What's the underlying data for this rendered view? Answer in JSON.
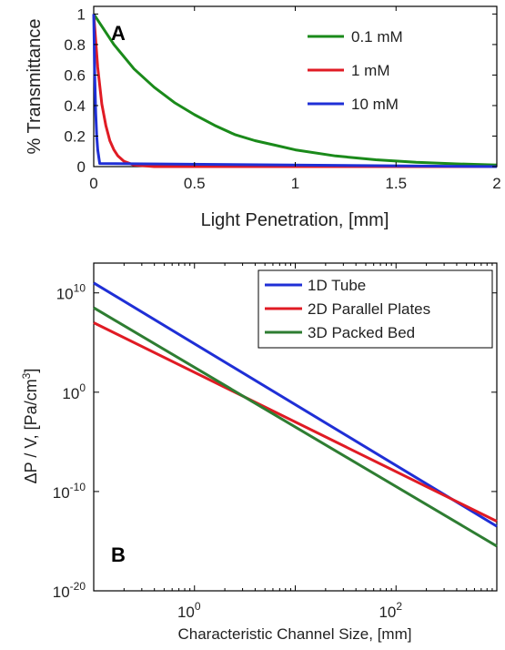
{
  "chart_data": [
    {
      "type": "line",
      "panel_label": "A",
      "xlabel": "Light Penetration, [mm]",
      "ylabel": "% Transmittance",
      "xlim": [
        0,
        2
      ],
      "ylim": [
        0,
        1.05
      ],
      "xticks": [
        0,
        0.5,
        1,
        1.5,
        2
      ],
      "xtick_labels": [
        "0",
        "0.5",
        "1",
        "1.5",
        "2"
      ],
      "yticks": [
        0,
        0.2,
        0.4,
        0.6,
        0.8,
        1
      ],
      "ytick_labels": [
        "0",
        "0.2",
        "0.4",
        "0.6",
        "0.8",
        "1"
      ],
      "grid": false,
      "legend_position": "top-right",
      "series": [
        {
          "name": "0.1 mM",
          "color": "#1a8a1a",
          "x": [
            0,
            0.1,
            0.2,
            0.3,
            0.4,
            0.5,
            0.6,
            0.7,
            0.8,
            0.9,
            1.0,
            1.2,
            1.4,
            1.6,
            1.8,
            2.0
          ],
          "y": [
            1,
            0.8,
            0.64,
            0.52,
            0.42,
            0.34,
            0.27,
            0.21,
            0.17,
            0.14,
            0.11,
            0.07,
            0.045,
            0.028,
            0.018,
            0.011
          ]
        },
        {
          "name": "1 mM",
          "color": "#e01b24",
          "x": [
            0,
            0.02,
            0.04,
            0.06,
            0.08,
            0.1,
            0.12,
            0.15,
            0.2,
            0.3,
            2.0
          ],
          "y": [
            1,
            0.65,
            0.41,
            0.27,
            0.17,
            0.11,
            0.07,
            0.035,
            0.01,
            0,
            0
          ]
        },
        {
          "name": "10 mM",
          "color": "#1f2fd6",
          "x": [
            0,
            0.005,
            0.01,
            0.015,
            0.02,
            0.03,
            2.0
          ],
          "y": [
            1,
            0.6,
            0.35,
            0.2,
            0.11,
            0.02,
            0
          ]
        }
      ]
    },
    {
      "type": "line",
      "panel_label": "B",
      "xlabel": "Characteristic Channel Size, [mm]",
      "ylabel": "ΔP / V, [Pa/cm",
      "ylabel_superscript": "3",
      "ylabel_suffix": "]",
      "xscale": "log",
      "yscale": "log",
      "xlim": [
        0.1,
        1000
      ],
      "ylim": [
        1e-20,
        10000000000000.0
      ],
      "xticks": [
        1,
        100
      ],
      "xtick_labels": [
        {
          "base": "10",
          "exp": "0"
        },
        {
          "base": "10",
          "exp": "2"
        }
      ],
      "yticks": [
        1e-20,
        1e-10,
        1,
        10000000000.0
      ],
      "ytick_labels": [
        {
          "base": "10",
          "exp": "-20"
        },
        {
          "base": "10",
          "exp": "-10"
        },
        {
          "base": "10",
          "exp": "0"
        },
        {
          "base": "10",
          "exp": "10"
        }
      ],
      "grid": false,
      "legend_position": "top-right",
      "series": [
        {
          "name": "1D Tube",
          "color": "#1f2fd6",
          "x": [
            0.1,
            1000
          ],
          "y": [
            100000000000.0,
            3.16e-14
          ]
        },
        {
          "name": "2D Parallel Plates",
          "color": "#e01b24",
          "x": [
            0.1,
            1000
          ],
          "y": [
            10000000.0,
            1e-13
          ]
        },
        {
          "name": "3D Packed Bed",
          "color": "#2e7d32",
          "x": [
            0.1,
            1000
          ],
          "y": [
            316000000.0,
            3.16e-16
          ]
        }
      ]
    }
  ]
}
